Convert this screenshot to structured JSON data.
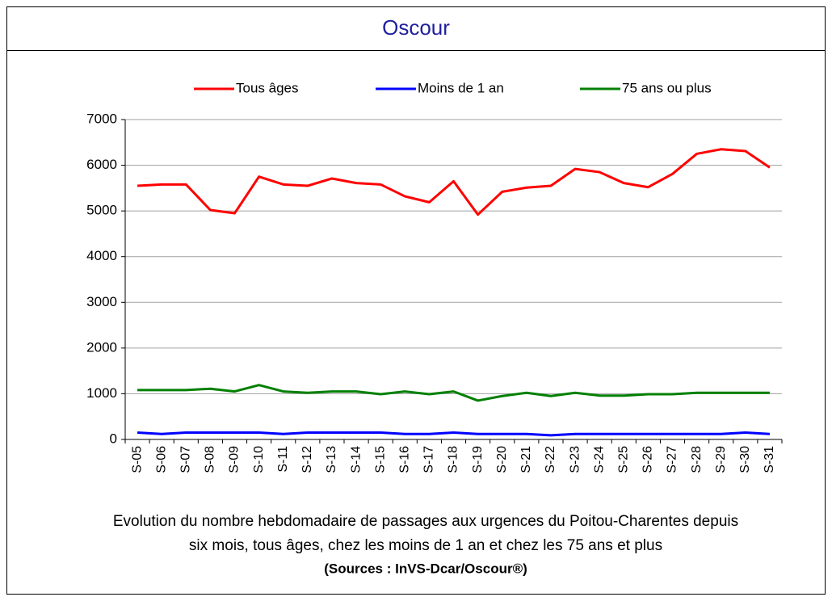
{
  "header": {
    "title": "Oscour"
  },
  "chart_data": {
    "type": "line",
    "categories": [
      "S-05",
      "S-06",
      "S-07",
      "S-08",
      "S-09",
      "S-10",
      "S-11",
      "S-12",
      "S-13",
      "S-14",
      "S-15",
      "S-16",
      "S-17",
      "S-18",
      "S-19",
      "S-20",
      "S-21",
      "S-22",
      "S-23",
      "S-24",
      "S-25",
      "S-26",
      "S-27",
      "S-28",
      "S-29",
      "S-30",
      "S-31"
    ],
    "series": [
      {
        "name": "Tous âges",
        "color": "#ff0000",
        "values": [
          5550,
          5580,
          5580,
          5020,
          4950,
          5750,
          5580,
          5550,
          5710,
          5610,
          5580,
          5320,
          5190,
          5650,
          4920,
          5420,
          5510,
          5550,
          5920,
          5850,
          5610,
          5520,
          5810,
          6250,
          6350,
          6310,
          5950
        ]
      },
      {
        "name": "Moins de 1 an",
        "color": "#0000ff",
        "values": [
          150,
          120,
          150,
          150,
          150,
          150,
          120,
          150,
          150,
          150,
          150,
          120,
          120,
          150,
          120,
          120,
          120,
          90,
          120,
          120,
          120,
          120,
          120,
          120,
          120,
          150,
          120
        ]
      },
      {
        "name": "75 ans ou plus",
        "color": "#008000",
        "values": [
          1080,
          1080,
          1080,
          1110,
          1050,
          1190,
          1050,
          1020,
          1050,
          1050,
          990,
          1050,
          990,
          1050,
          850,
          950,
          1020,
          950,
          1020,
          960,
          960,
          990,
          990,
          1020,
          1020,
          1020,
          1020
        ]
      }
    ],
    "ylim": [
      0,
      7000
    ],
    "yticks": [
      0,
      1000,
      2000,
      3000,
      4000,
      5000,
      6000,
      7000
    ],
    "grid": true,
    "legend": "top",
    "caption": [
      "Evolution du nombre hebdomadaire de passages aux urgences du Poitou-Charentes depuis",
      "six mois, tous âges, chez les moins de 1 an et chez les 75 ans  et plus"
    ],
    "source": "(Sources : InVS-Dcar/Oscour®)"
  }
}
